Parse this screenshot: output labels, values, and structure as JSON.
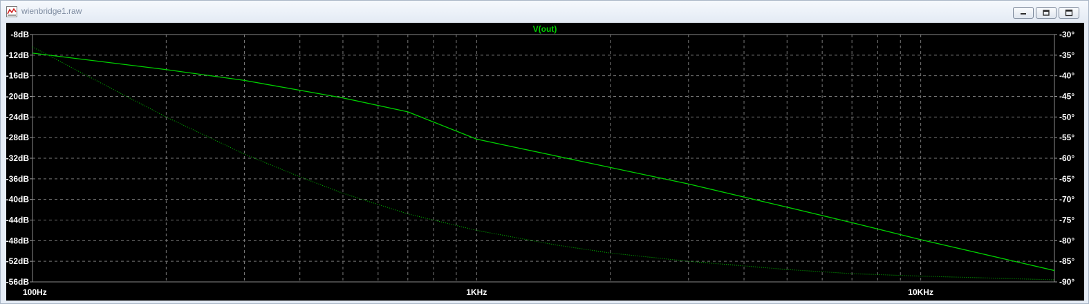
{
  "window": {
    "title": "wienbridge1.raw"
  },
  "chart_data": {
    "type": "line",
    "title": "V(out)",
    "x_scale": "log",
    "xlim": [
      100,
      20000
    ],
    "x_ticks": [
      {
        "value": 100,
        "label": "100Hz"
      },
      {
        "value": 1000,
        "label": "1KHz"
      },
      {
        "value": 10000,
        "label": "10KHz"
      }
    ],
    "y_left": {
      "unit": "dB",
      "lim": [
        -56,
        -8
      ],
      "ticks": [
        {
          "value": -8,
          "label": "-8dB"
        },
        {
          "value": -12,
          "label": "-12dB"
        },
        {
          "value": -16,
          "label": "-16dB"
        },
        {
          "value": -20,
          "label": "-20dB"
        },
        {
          "value": -24,
          "label": "-24dB"
        },
        {
          "value": -28,
          "label": "-28dB"
        },
        {
          "value": -32,
          "label": "-32dB"
        },
        {
          "value": -36,
          "label": "-36dB"
        },
        {
          "value": -40,
          "label": "-40dB"
        },
        {
          "value": -44,
          "label": "-44dB"
        },
        {
          "value": -48,
          "label": "-48dB"
        },
        {
          "value": -52,
          "label": "-52dB"
        },
        {
          "value": -56,
          "label": "-56dB"
        }
      ]
    },
    "y_right": {
      "unit": "°",
      "lim": [
        -90,
        -30
      ],
      "ticks": [
        {
          "value": -30,
          "label": "-30°"
        },
        {
          "value": -35,
          "label": "-35°"
        },
        {
          "value": -40,
          "label": "-40°"
        },
        {
          "value": -45,
          "label": "-45°"
        },
        {
          "value": -50,
          "label": "-50°"
        },
        {
          "value": -55,
          "label": "-55°"
        },
        {
          "value": -60,
          "label": "-60°"
        },
        {
          "value": -65,
          "label": "-65°"
        },
        {
          "value": -70,
          "label": "-70°"
        },
        {
          "value": -75,
          "label": "-75°"
        },
        {
          "value": -80,
          "label": "-80°"
        },
        {
          "value": -85,
          "label": "-85°"
        },
        {
          "value": -90,
          "label": "-90°"
        }
      ]
    },
    "grid": true,
    "series": [
      {
        "name": "V(out)",
        "kind": "magnitude",
        "axis": "left",
        "style": "solid",
        "color": "#00d000",
        "x": [
          100,
          200,
          300,
          500,
          700,
          1000,
          2000,
          3000,
          5000,
          7000,
          10000,
          20000
        ],
        "y": [
          -11.6,
          -14.8,
          -16.9,
          -20.3,
          -23.0,
          -28.3,
          -33.8,
          -37.0,
          -41.5,
          -44.5,
          -47.8,
          -53.8
        ]
      },
      {
        "name": "V(out)",
        "kind": "phase",
        "axis": "right",
        "style": "dotted",
        "color": "#00b800",
        "x": [
          100,
          150,
          200,
          300,
          400,
          500,
          700,
          1000,
          1500,
          2000,
          3000,
          5000,
          7000,
          10000,
          20000
        ],
        "y": [
          -33.0,
          -43.0,
          -50.0,
          -59.0,
          -64.5,
          -68.5,
          -73.5,
          -77.5,
          -81.0,
          -83.0,
          -85.0,
          -87.0,
          -88.0,
          -88.6,
          -89.5
        ]
      }
    ]
  }
}
